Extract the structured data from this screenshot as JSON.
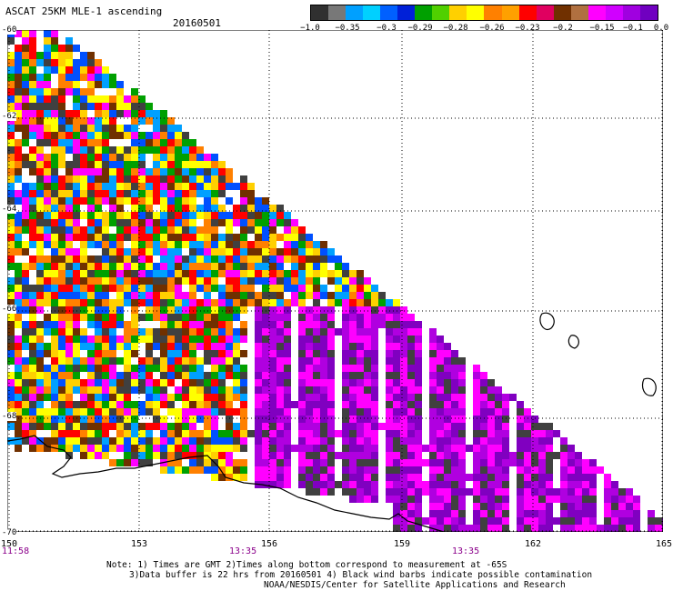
{
  "header": {
    "title": "ASCAT 25KM MLE-1 ascending",
    "date": "20160501"
  },
  "legend": {
    "colors": [
      "#303030",
      "#787878",
      "#00a0ff",
      "#00d0ff",
      "#0060ff",
      "#0020d8",
      "#00a000",
      "#50d000",
      "#ffd000",
      "#ffff00",
      "#ff8000",
      "#ffa000",
      "#ff0000",
      "#e00060",
      "#703000",
      "#b07040",
      "#ff00ff",
      "#d000ff",
      "#a000e0",
      "#7000c0"
    ],
    "labels": [
      "−1.0",
      "−0.35",
      "−0.3",
      "−0.29",
      "−0.28",
      "−0.26",
      "−0.23",
      "−0.2",
      "−0.15",
      "−0.1",
      "0.0"
    ]
  },
  "axes": {
    "lat_labels": [
      "-60",
      "-62",
      "-64",
      "-66",
      "-68",
      "-70"
    ],
    "lon_labels": [
      "150",
      "153",
      "156",
      "159",
      "162",
      "165"
    ]
  },
  "times": [
    "11:58",
    "13:35",
    "13:35"
  ],
  "notes": [
    "Note: 1) Times are GMT 2)Times along bottom correspond to measurement at -65S",
    "3)Data buffer is 22 hrs from 20160501 4) Black wind barbs indicate possible contamination",
    "NOAA/NESDIS/Center for Satellite Applications and Research"
  ],
  "map": {
    "pixel_colors": [
      "#404040",
      "#00a0ff",
      "#0050ff",
      "#00a000",
      "#ffd000",
      "#ffff00",
      "#ff8000",
      "#ff0000",
      "#703000",
      "#ff00ff",
      "#b000e0",
      "#8000c0",
      "#ffffff"
    ]
  }
}
